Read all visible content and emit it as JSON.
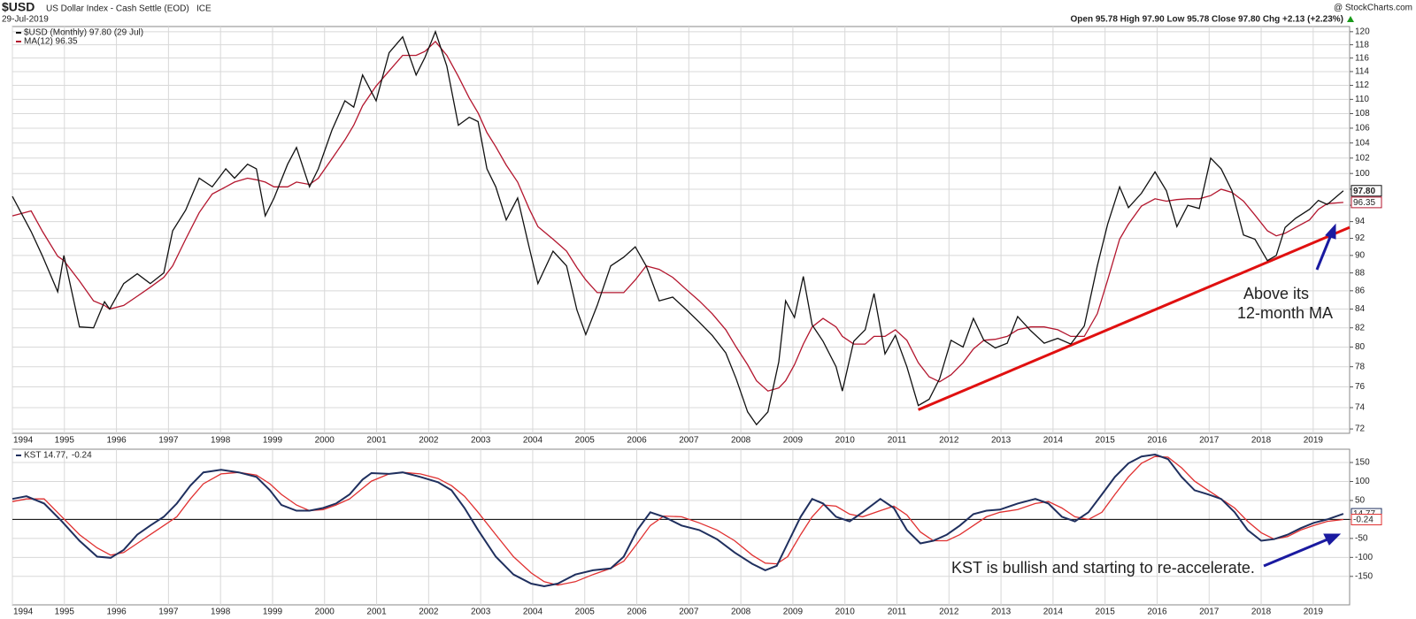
{
  "chart_data": [
    {
      "type": "line",
      "title": "$USD",
      "subtitle": "US Dollar Index - Cash Settle (EOD)",
      "exchange": "ICE",
      "date": "29-Jul-2019",
      "quote": "Open 95.78  High 97.90  Low 95.78  Close 97.80  Chg +2.13 (+2.23%)",
      "credit": "@ StockCharts.com",
      "log_scale": true,
      "grid": true,
      "x": [
        1994.0,
        1994.36,
        1994.58,
        1994.87,
        1994.99,
        1995.29,
        1995.56,
        1995.77,
        1995.87,
        1996.14,
        1996.4,
        1996.65,
        1996.91,
        1997.08,
        1997.33,
        1997.59,
        1997.84,
        1998.1,
        1998.27,
        1998.52,
        1998.69,
        1998.86,
        1999.03,
        1999.29,
        1999.46,
        1999.71,
        1999.88,
        2000.14,
        2000.39,
        2000.56,
        2000.73,
        2000.99,
        2001.24,
        2001.5,
        2001.76,
        2001.93,
        2002.13,
        2002.35,
        2002.57,
        2002.78,
        2002.95,
        2003.12,
        2003.29,
        2003.49,
        2003.71,
        2003.93,
        2004.1,
        2004.39,
        2004.65,
        2004.85,
        2005.02,
        2005.24,
        2005.5,
        2005.75,
        2005.97,
        2006.18,
        2006.43,
        2006.69,
        2006.94,
        2007.2,
        2007.45,
        2007.71,
        2007.91,
        2008.13,
        2008.3,
        2008.52,
        2008.73,
        2008.86,
        2009.03,
        2009.2,
        2009.37,
        2009.58,
        2009.83,
        2009.95,
        2010.17,
        2010.39,
        2010.56,
        2010.77,
        2010.97,
        2011.19,
        2011.41,
        2011.62,
        2011.82,
        2012.04,
        2012.27,
        2012.47,
        2012.67,
        2012.89,
        2013.12,
        2013.32,
        2013.57,
        2013.83,
        2014.09,
        2014.34,
        2014.6,
        2014.85,
        2015.05,
        2015.28,
        2015.45,
        2015.7,
        2015.96,
        2016.18,
        2016.38,
        2016.59,
        2016.81,
        2017.03,
        2017.23,
        2017.44,
        2017.66,
        2017.88,
        2018.12,
        2018.29,
        2018.46,
        2018.66,
        2018.93,
        2019.1,
        2019.27,
        2019.58
      ],
      "series": [
        {
          "name": "$USD (Monthly) 97.80 (29 Jul)",
          "color": "#111111",
          "last_label": "97.80",
          "values": [
            97.1,
            92.8,
            89.9,
            85.9,
            90,
            82.1,
            82,
            84.8,
            84,
            86.8,
            87.9,
            86.8,
            88,
            92.9,
            95.4,
            99.4,
            98.3,
            100.6,
            99.4,
            101.2,
            100.6,
            94.7,
            96.9,
            101.2,
            103.4,
            98.3,
            100.6,
            105.7,
            109.8,
            108.9,
            113.5,
            109.8,
            116.8,
            119.2,
            113.5,
            116.1,
            120,
            114.8,
            106.4,
            107.5,
            106.9,
            100.6,
            98.3,
            94.2,
            96.9,
            91,
            86.8,
            90.5,
            88.8,
            83.9,
            81.3,
            84.4,
            88.8,
            89.8,
            91,
            88.8,
            84.9,
            85.3,
            84,
            82.6,
            81.2,
            79.4,
            76.8,
            73.6,
            72.4,
            73.6,
            78.5,
            84.9,
            83.1,
            87.6,
            82.3,
            80.6,
            78,
            75.6,
            80.6,
            81.8,
            85.7,
            79.3,
            81.2,
            78,
            74.2,
            74.8,
            76.8,
            80.7,
            80,
            83,
            80.7,
            79.9,
            80.4,
            83.2,
            81.7,
            80.4,
            80.9,
            80.3,
            82.2,
            88.8,
            93.7,
            98.3,
            95.7,
            97.5,
            100.2,
            97.8,
            93.4,
            96,
            95.6,
            102,
            100.6,
            97.8,
            92.4,
            91.9,
            89.4,
            90,
            93.3,
            94.4,
            95.5,
            96.6,
            96.1,
            97.8
          ]
        },
        {
          "name": "MA(12) 96.35",
          "color": "#b3162e",
          "last_label": "96.35",
          "values": [
            94.7,
            95.3,
            92.8,
            89.9,
            89.4,
            87.1,
            84.9,
            84.4,
            84,
            84.4,
            85.4,
            86.4,
            87.5,
            88.8,
            91.9,
            95.1,
            97.4,
            98.3,
            98.9,
            99.4,
            99.2,
            98.9,
            98.3,
            98.3,
            98.9,
            98.6,
            99.4,
            101.9,
            104.4,
            106.4,
            109.1,
            111.9,
            114.1,
            116.4,
            116.4,
            117,
            118.5,
            116.4,
            113.3,
            110.2,
            108.1,
            105.4,
            103.5,
            101.1,
            98.9,
            95.6,
            93.4,
            91.9,
            90.5,
            88.6,
            87.2,
            85.8,
            85.8,
            85.8,
            87.2,
            88.8,
            88.4,
            87.5,
            86.2,
            84.9,
            83.5,
            81.8,
            80,
            78.2,
            76.6,
            75.6,
            75.9,
            76.6,
            78.2,
            80.3,
            82.1,
            83,
            82.1,
            81.1,
            80.3,
            80.3,
            81.1,
            81.1,
            81.8,
            80.7,
            78.4,
            77,
            76.5,
            77.2,
            78.4,
            79.8,
            80.7,
            80.8,
            81.1,
            81.8,
            82.1,
            82.1,
            81.8,
            81.1,
            81.1,
            83.5,
            87.2,
            91.9,
            93.7,
            95.9,
            96.8,
            96.5,
            96.7,
            96.8,
            96.8,
            97.2,
            98,
            97.6,
            96.5,
            94.8,
            92.9,
            92.3,
            92.6,
            93.3,
            94.2,
            95.5,
            96.2,
            96.35
          ]
        }
      ],
      "trendline": {
        "x": [
          2011.41,
          2019.7
        ],
        "y": [
          73.8,
          93.3
        ],
        "color": "#e01010"
      },
      "annotations": [
        "Above its",
        "12-month MA"
      ],
      "annotation_color": "#1a1aa0",
      "xlim": [
        1994,
        2019.7
      ],
      "xticks": [
        1994,
        1995,
        1996,
        1997,
        1998,
        1999,
        2000,
        2001,
        2002,
        2003,
        2004,
        2005,
        2006,
        2007,
        2008,
        2009,
        2010,
        2011,
        2012,
        2013,
        2014,
        2015,
        2016,
        2017,
        2018,
        2019
      ],
      "ylim": [
        71.6,
        120.8
      ],
      "yticks": [
        72,
        74,
        76,
        78,
        80,
        82,
        84,
        86,
        88,
        90,
        92,
        94,
        96,
        98,
        100,
        102,
        104,
        106,
        108,
        110,
        112,
        114,
        116,
        118,
        120
      ]
    },
    {
      "type": "line",
      "grid": true,
      "reference_line": 0,
      "x": [
        1994.0,
        1994.27,
        1994.61,
        1994.95,
        1995.29,
        1995.63,
        1995.89,
        1996.14,
        1996.4,
        1996.65,
        1996.91,
        1997.16,
        1997.42,
        1997.67,
        1998.01,
        1998.35,
        1998.69,
        1998.95,
        1999.17,
        1999.46,
        1999.71,
        1999.97,
        2000.22,
        2000.48,
        2000.73,
        2000.9,
        2001.24,
        2001.5,
        2001.84,
        2002.18,
        2002.44,
        2002.69,
        2002.95,
        2003.29,
        2003.63,
        2003.97,
        2004.22,
        2004.48,
        2004.82,
        2005.16,
        2005.5,
        2005.75,
        2006.01,
        2006.26,
        2006.52,
        2006.86,
        2007.2,
        2007.54,
        2007.88,
        2008.22,
        2008.47,
        2008.69,
        2008.9,
        2009.15,
        2009.37,
        2009.58,
        2009.83,
        2010.09,
        2010.34,
        2010.68,
        2010.94,
        2011.19,
        2011.45,
        2011.7,
        2011.96,
        2012.21,
        2012.47,
        2012.72,
        2012.98,
        2013.32,
        2013.66,
        2013.91,
        2014.17,
        2014.42,
        2014.68,
        2014.94,
        2015.19,
        2015.45,
        2015.7,
        2015.96,
        2016.21,
        2016.47,
        2016.72,
        2016.98,
        2017.23,
        2017.49,
        2017.74,
        2018.0,
        2018.25,
        2018.51,
        2018.76,
        2019.01,
        2019.27,
        2019.58
      ],
      "series": [
        {
          "name": "KST 14.77,",
          "color": "#1f2f5e",
          "last_label": "14.77",
          "values": [
            54,
            61,
            42,
            -5,
            -56,
            -98,
            -101,
            -80,
            -40,
            -16,
            7,
            42,
            89,
            124,
            131,
            124,
            112,
            77,
            38,
            23,
            23,
            30,
            42,
            66,
            105,
            122,
            120,
            124,
            112,
            98,
            77,
            30,
            -28,
            -98,
            -145,
            -169,
            -176,
            -169,
            -145,
            -134,
            -129,
            -98,
            -28,
            19,
            7,
            -16,
            -28,
            -52,
            -87,
            -117,
            -134,
            -122,
            -63,
            7,
            54,
            42,
            7,
            -5,
            19,
            54,
            30,
            -28,
            -63,
            -56,
            -40,
            -16,
            14,
            23,
            26,
            42,
            54,
            42,
            7,
            -5,
            19,
            66,
            112,
            148,
            166,
            171,
            159,
            112,
            77,
            66,
            54,
            19,
            -28,
            -56,
            -52,
            -40,
            -23,
            -9,
            0,
            14.77
          ]
        },
        {
          "name": "-0.24",
          "color": "#e03030",
          "last_label": "-0.24",
          "values": [
            47,
            54,
            54,
            7,
            -40,
            -75,
            -94,
            -87,
            -63,
            -40,
            -16,
            7,
            54,
            94,
            120,
            124,
            117,
            94,
            66,
            38,
            23,
            26,
            38,
            54,
            82,
            101,
            120,
            124,
            120,
            108,
            89,
            61,
            19,
            -40,
            -98,
            -141,
            -164,
            -173,
            -164,
            -145,
            -129,
            -110,
            -63,
            -16,
            9,
            7,
            -9,
            -28,
            -56,
            -94,
            -115,
            -117,
            -98,
            -40,
            7,
            38,
            35,
            14,
            7,
            23,
            35,
            12,
            -33,
            -56,
            -56,
            -40,
            -16,
            7,
            19,
            26,
            42,
            47,
            30,
            7,
            0,
            19,
            66,
            112,
            148,
            166,
            164,
            136,
            101,
            77,
            54,
            30,
            -5,
            -35,
            -52,
            -45,
            -28,
            -16,
            -5,
            -0.24
          ]
        }
      ],
      "annotations": [
        "KST is bullish and starting to re-accelerate."
      ],
      "annotation_color": "#1a1aa0",
      "xlim": [
        1994,
        2019.7
      ],
      "xticks": [
        1994,
        1995,
        1996,
        1997,
        1998,
        1999,
        2000,
        2001,
        2002,
        2003,
        2004,
        2005,
        2006,
        2007,
        2008,
        2009,
        2010,
        2011,
        2012,
        2013,
        2014,
        2015,
        2016,
        2017,
        2018,
        2019
      ],
      "ylim": [
        -225,
        185
      ],
      "yticks": [
        -150,
        -100,
        -50,
        0,
        50,
        100,
        150
      ]
    }
  ]
}
